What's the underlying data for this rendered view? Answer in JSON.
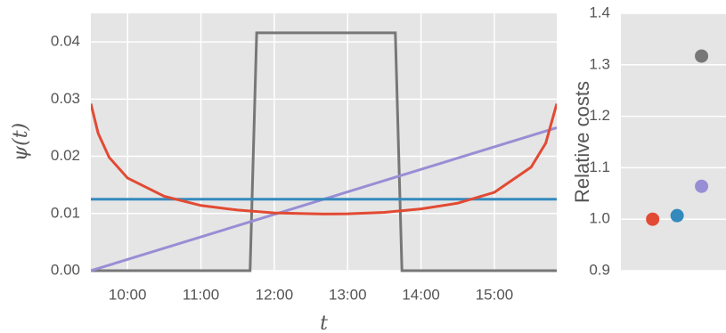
{
  "chart_data": [
    {
      "type": "line",
      "xlabel": "t",
      "ylabel": "ψ(t)",
      "xlim": [
        9.5,
        15.85
      ],
      "ylim": [
        0,
        0.045
      ],
      "xticks": [
        {
          "value": 10,
          "label": "10:00"
        },
        {
          "value": 11,
          "label": "11:00"
        },
        {
          "value": 12,
          "label": "12:00"
        },
        {
          "value": 13,
          "label": "13:00"
        },
        {
          "value": 14,
          "label": "14:00"
        },
        {
          "value": 15,
          "label": "15:00"
        }
      ],
      "yticks": [
        {
          "value": 0,
          "label": "0.00"
        },
        0.01,
        0.02,
        0.03,
        0.04
      ],
      "grid": true,
      "series": [
        {
          "color": "#777777",
          "x": [
            9.5,
            11.67,
            11.76,
            13.65,
            13.74,
            15.85
          ],
          "values": [
            0,
            0,
            0.0416,
            0.0416,
            0,
            0
          ]
        },
        {
          "color": "#988ed5",
          "x": [
            9.5,
            15.85
          ],
          "values": [
            0,
            0.025
          ]
        },
        {
          "color": "#348abd",
          "x": [
            9.5,
            15.85
          ],
          "values": [
            0.0125,
            0.0125
          ]
        },
        {
          "color": "#e24a33",
          "x": [
            9.5,
            9.6,
            9.75,
            10,
            10.5,
            11,
            11.5,
            12,
            12.675,
            13,
            13.5,
            14,
            14.5,
            15,
            15.5,
            15.7,
            15.85
          ],
          "values": [
            0.0292,
            0.024,
            0.0198,
            0.0162,
            0.013,
            0.0114,
            0.0106,
            0.0101,
            0.0099,
            0.00995,
            0.0102,
            0.0108,
            0.0118,
            0.0137,
            0.0181,
            0.0223,
            0.0292
          ]
        }
      ]
    },
    {
      "type": "scatter",
      "ylabel": "Relative costs",
      "xlim": [
        -1.3,
        3
      ],
      "ylim": [
        0.9,
        1.4
      ],
      "yticks": [
        0.9,
        {
          "value": 1.0,
          "label": "1.0"
        },
        1.1,
        1.2,
        1.3,
        1.4
      ],
      "grid": true,
      "series": [
        {
          "color": "#e24a33",
          "x": [
            0
          ],
          "values": [
            1.0
          ]
        },
        {
          "color": "#348abd",
          "x": [
            1
          ],
          "values": [
            1.007
          ]
        },
        {
          "color": "#988ed5",
          "x": [
            2
          ],
          "values": [
            1.064
          ]
        },
        {
          "color": "#777777",
          "x": [
            2
          ],
          "values": [
            1.317
          ]
        }
      ]
    }
  ]
}
